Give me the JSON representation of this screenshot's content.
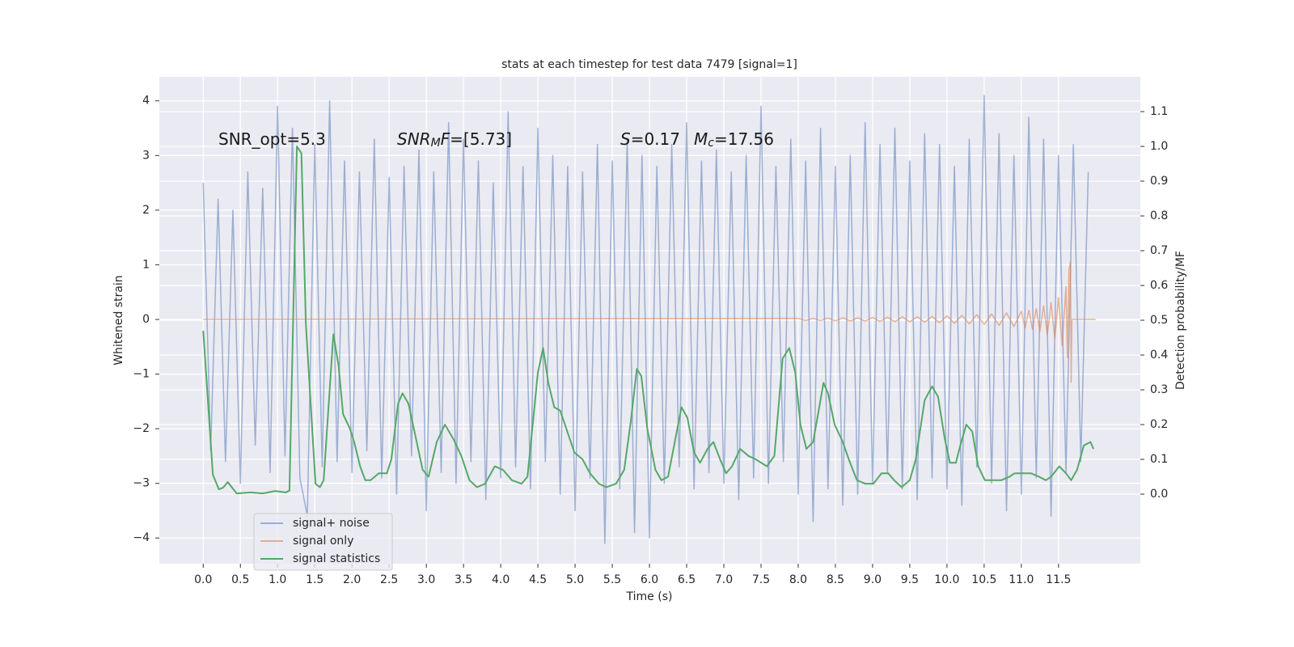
{
  "chart_data": {
    "type": "line",
    "title": "stats at each timestep for test data 7479 [signal=1]",
    "xlabel": "Time (s)",
    "ylabel": "Whitened strain",
    "y2label": "Detection probability/MF",
    "annotations": [
      {
        "parts": [
          {
            "text": "SNR_opt=5.3",
            "style": "normal"
          }
        ]
      },
      {
        "parts": [
          {
            "text": "SNR",
            "style": "italic"
          },
          {
            "text": "M",
            "style": "italic-sub"
          },
          {
            "text": "F",
            "style": "italic"
          },
          {
            "text": "=[5.73]",
            "style": "normal"
          }
        ]
      },
      {
        "parts": [
          {
            "text": "S",
            "style": "italic"
          },
          {
            "text": "=0.17",
            "style": "normal"
          }
        ]
      },
      {
        "parts": [
          {
            "text": "M",
            "style": "italic"
          },
          {
            "text": "c",
            "style": "italic-sub"
          },
          {
            "text": "=17.56",
            "style": "normal"
          }
        ]
      }
    ],
    "xlim": [
      -0.59,
      12.6
    ],
    "ylim": [
      -4.47,
      4.44
    ],
    "y2lim": [
      -0.2,
      1.2
    ],
    "xticks": [
      {
        "value": 0,
        "label": "0.0"
      },
      0.5,
      {
        "value": 1,
        "label": "1.0"
      },
      1.5,
      {
        "value": 2,
        "label": "2.0"
      },
      2.5,
      {
        "value": 3,
        "label": "3.0"
      },
      3.5,
      {
        "value": 4,
        "label": "4.0"
      },
      4.5,
      {
        "value": 5,
        "label": "5.0"
      },
      5.5,
      {
        "value": 6,
        "label": "6.0"
      },
      6.5,
      {
        "value": 7,
        "label": "7.0"
      },
      7.5,
      {
        "value": 8,
        "label": "8.0"
      },
      8.5,
      {
        "value": 9,
        "label": "9.0"
      },
      9.5,
      {
        "value": 10,
        "label": "10.0"
      },
      10.5,
      {
        "value": 11,
        "label": "11.0"
      },
      11.5
    ],
    "yticks": [
      {
        "value": -4,
        "label": "−4"
      },
      {
        "value": -3,
        "label": "−3"
      },
      {
        "value": -2,
        "label": "−2"
      },
      {
        "value": -1,
        "label": "−1"
      },
      0,
      1,
      2,
      3,
      4
    ],
    "y2ticks": [
      {
        "value": 0,
        "label": "0.0"
      },
      0.1,
      0.2,
      0.3,
      0.4,
      0.5,
      0.6,
      0.7,
      0.8,
      0.9,
      {
        "value": 1,
        "label": "1.0"
      },
      1.1
    ],
    "grid": true,
    "legend": "lower left",
    "series": [
      {
        "name": "signal+ noise",
        "color": "#4c72b0",
        "opacity": 0.5,
        "axis": "y",
        "x": [
          0.0,
          0.1,
          0.2,
          0.3,
          0.4,
          0.5,
          0.6,
          0.7,
          0.8,
          0.9,
          1.0,
          1.1,
          1.2,
          1.3,
          1.4,
          1.5,
          1.6,
          1.7,
          1.8,
          1.9,
          2.0,
          2.1,
          2.2,
          2.3,
          2.4,
          2.5,
          2.6,
          2.7,
          2.8,
          2.9,
          3.0,
          3.1,
          3.2,
          3.3,
          3.4,
          3.5,
          3.6,
          3.7,
          3.8,
          3.9,
          4.0,
          4.1,
          4.2,
          4.3,
          4.4,
          4.5,
          4.6,
          4.7,
          4.8,
          4.9,
          5.0,
          5.1,
          5.2,
          5.3,
          5.4,
          5.5,
          5.6,
          5.7,
          5.8,
          5.9,
          6.0,
          6.1,
          6.2,
          6.3,
          6.4,
          6.5,
          6.6,
          6.7,
          6.8,
          6.9,
          7.0,
          7.1,
          7.2,
          7.3,
          7.4,
          7.5,
          7.6,
          7.7,
          7.8,
          7.9,
          8.0,
          8.1,
          8.2,
          8.3,
          8.4,
          8.5,
          8.6,
          8.7,
          8.8,
          8.9,
          9.0,
          9.1,
          9.2,
          9.3,
          9.4,
          9.5,
          9.6,
          9.7,
          9.8,
          9.9,
          10.0,
          10.1,
          10.2,
          10.3,
          10.4,
          10.5,
          10.6,
          10.7,
          10.8,
          10.9,
          11.0,
          11.1,
          11.2,
          11.3,
          11.4,
          11.5,
          11.6,
          11.7,
          11.8,
          11.9
        ],
        "values": [
          2.5,
          -2.4,
          2.2,
          -2.6,
          2.0,
          -3.0,
          2.7,
          -2.3,
          2.4,
          -2.8,
          3.9,
          -2.5,
          3.5,
          -2.9,
          -3.6,
          3.2,
          -2.7,
          4.0,
          -2.6,
          2.9,
          -2.8,
          2.7,
          -2.4,
          3.3,
          -2.9,
          2.6,
          -3.2,
          2.8,
          -2.5,
          3.1,
          -3.5,
          2.7,
          -2.8,
          3.6,
          -3.0,
          3.3,
          -2.6,
          2.9,
          -3.3,
          2.5,
          -2.9,
          3.8,
          -2.7,
          2.8,
          -3.1,
          3.5,
          -2.6,
          3.0,
          -3.2,
          2.8,
          -3.5,
          2.7,
          -2.9,
          3.2,
          -4.1,
          2.9,
          -3.1,
          3.3,
          -3.9,
          3.0,
          -4.0,
          2.8,
          -3.0,
          3.2,
          -2.7,
          3.6,
          -3.1,
          2.9,
          -2.8,
          3.1,
          -3.0,
          2.7,
          -3.3,
          3.0,
          -2.9,
          3.9,
          -3.0,
          2.8,
          -2.6,
          3.3,
          -3.2,
          2.9,
          -3.7,
          3.5,
          -3.1,
          2.8,
          -3.4,
          3.0,
          -3.2,
          3.6,
          -3.0,
          3.2,
          -2.8,
          3.5,
          -3.1,
          2.9,
          -3.3,
          3.4,
          -2.9,
          3.2,
          -3.1,
          2.8,
          -3.4,
          3.3,
          -2.7,
          4.1,
          -3.0,
          3.4,
          -3.5,
          3.0,
          -3.2,
          3.7,
          -2.9,
          3.3,
          -3.6,
          3.0,
          -2.8,
          3.2,
          -2.6,
          2.7
        ]
      },
      {
        "name": "signal only",
        "color": "#dd8452",
        "opacity": 0.6,
        "axis": "y",
        "x": [
          0.0,
          8.0,
          8.1,
          8.2,
          8.3,
          8.4,
          8.5,
          8.6,
          8.7,
          8.8,
          8.9,
          9.0,
          9.1,
          9.2,
          9.3,
          9.4,
          9.5,
          9.6,
          9.7,
          9.8,
          9.9,
          10.0,
          10.1,
          10.2,
          10.3,
          10.4,
          10.5,
          10.6,
          10.7,
          10.8,
          10.9,
          11.0,
          11.05,
          11.1,
          11.15,
          11.2,
          11.25,
          11.3,
          11.35,
          11.4,
          11.45,
          11.5,
          11.55,
          11.6,
          11.62,
          11.64,
          11.66,
          11.67,
          11.68,
          12.0
        ],
        "values": [
          0,
          0.02,
          -0.02,
          0.02,
          -0.02,
          0.025,
          -0.025,
          0.03,
          -0.03,
          0.03,
          -0.03,
          0.035,
          -0.035,
          0.04,
          -0.04,
          0.045,
          -0.045,
          0.05,
          -0.05,
          0.055,
          -0.06,
          0.065,
          -0.07,
          0.075,
          -0.08,
          0.085,
          -0.09,
          0.1,
          -0.11,
          0.12,
          -0.13,
          0.15,
          -0.16,
          0.17,
          -0.18,
          0.2,
          -0.22,
          0.25,
          -0.28,
          0.31,
          -0.35,
          0.4,
          -0.48,
          0.6,
          -0.7,
          0.9,
          1.05,
          -1.15,
          0,
          0
        ]
      },
      {
        "name": "signal statistics",
        "color": "#55a868",
        "opacity": 1,
        "axis": "y2",
        "x": [
          0,
          0.13,
          0.21,
          0.27,
          0.33,
          0.45,
          0.64,
          0.8,
          0.97,
          1.11,
          1.16,
          1.26,
          1.32,
          1.38,
          1.51,
          1.57,
          1.62,
          1.75,
          1.82,
          1.88,
          1.97,
          2.03,
          2.11,
          2.18,
          2.25,
          2.36,
          2.47,
          2.53,
          2.62,
          2.68,
          2.76,
          2.86,
          2.95,
          3.03,
          3.14,
          3.25,
          3.36,
          3.47,
          3.58,
          3.68,
          3.79,
          3.92,
          4.03,
          4.15,
          4.28,
          4.36,
          4.5,
          4.57,
          4.64,
          4.72,
          4.8,
          4.88,
          4.99,
          5.1,
          5.2,
          5.32,
          5.42,
          5.55,
          5.66,
          5.75,
          5.83,
          5.89,
          5.97,
          6.08,
          6.16,
          6.25,
          6.35,
          6.43,
          6.51,
          6.6,
          6.68,
          6.78,
          6.86,
          6.95,
          7.03,
          7.11,
          7.22,
          7.33,
          7.43,
          7.58,
          7.68,
          7.79,
          7.88,
          7.96,
          8.03,
          8.11,
          8.2,
          8.25,
          8.34,
          8.4,
          8.49,
          8.6,
          8.68,
          8.79,
          8.9,
          9.01,
          9.12,
          9.21,
          9.29,
          9.39,
          9.5,
          9.58,
          9.7,
          9.8,
          9.88,
          9.97,
          10.04,
          10.12,
          10.18,
          10.26,
          10.34,
          10.42,
          10.51,
          10.62,
          10.73,
          10.84,
          10.91,
          11.02,
          11.13,
          11.24,
          11.33,
          11.4,
          11.51,
          11.6,
          11.67,
          11.75,
          11.84,
          11.93,
          11.97
        ],
        "values": [
          0.47,
          0.056,
          0.014,
          0.019,
          0.035,
          0.002,
          0.005,
          0.002,
          0.009,
          0.005,
          0.01,
          1.0,
          0.98,
          0.49,
          0.03,
          0.02,
          0.04,
          0.46,
          0.37,
          0.23,
          0.19,
          0.15,
          0.08,
          0.04,
          0.04,
          0.06,
          0.06,
          0.1,
          0.26,
          0.29,
          0.26,
          0.16,
          0.07,
          0.05,
          0.15,
          0.2,
          0.16,
          0.11,
          0.04,
          0.02,
          0.03,
          0.08,
          0.07,
          0.04,
          0.03,
          0.05,
          0.35,
          0.42,
          0.32,
          0.25,
          0.24,
          0.19,
          0.12,
          0.1,
          0.06,
          0.03,
          0.02,
          0.03,
          0.07,
          0.21,
          0.36,
          0.34,
          0.19,
          0.07,
          0.04,
          0.05,
          0.16,
          0.25,
          0.22,
          0.12,
          0.09,
          0.13,
          0.15,
          0.1,
          0.06,
          0.08,
          0.13,
          0.11,
          0.1,
          0.08,
          0.11,
          0.39,
          0.42,
          0.35,
          0.2,
          0.13,
          0.15,
          0.21,
          0.32,
          0.29,
          0.2,
          0.15,
          0.1,
          0.04,
          0.03,
          0.03,
          0.06,
          0.06,
          0.04,
          0.02,
          0.04,
          0.1,
          0.27,
          0.31,
          0.28,
          0.16,
          0.09,
          0.09,
          0.14,
          0.2,
          0.18,
          0.08,
          0.04,
          0.04,
          0.04,
          0.05,
          0.06,
          0.06,
          0.06,
          0.05,
          0.04,
          0.05,
          0.08,
          0.06,
          0.04,
          0.07,
          0.14,
          0.15,
          0.13
        ]
      }
    ]
  }
}
